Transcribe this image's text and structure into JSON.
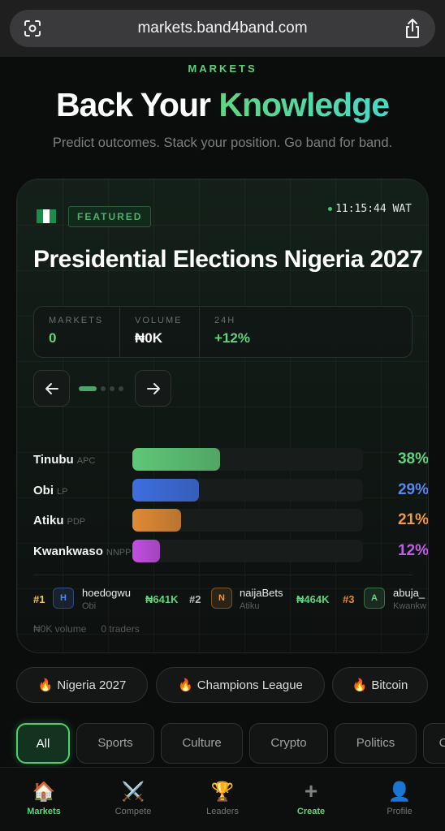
{
  "browser": {
    "url": "markets.band4band.com"
  },
  "hero": {
    "eyebrow": "MARKETS",
    "title_white": "Back Your ",
    "title_green": "Knowledge",
    "subtitle": "Predict outcomes. Stack your position. Go band for band."
  },
  "featured": {
    "badge": "FEATURED",
    "clock": "11:15:44 WAT",
    "title": "Presidential Elections Nigeria 2027",
    "stats": [
      {
        "label": "MARKETS",
        "value": "0",
        "color": "#5fd47c"
      },
      {
        "label": "VOLUME",
        "value": "₦0K",
        "color": "#ffffff"
      },
      {
        "label": "24H",
        "value": "+12%",
        "color": "#5fd47c"
      }
    ],
    "candidates": [
      {
        "name": "Tinubu",
        "party": "APC",
        "percent": "38%",
        "share": 0.38,
        "color": "#5fc777",
        "text_color": "#5fd47c"
      },
      {
        "name": "Obi",
        "party": "LP",
        "percent": "29%",
        "share": 0.29,
        "color": "#3e6ee0",
        "text_color": "#5a86f2"
      },
      {
        "name": "Atiku",
        "party": "PDP",
        "percent": "21%",
        "share": 0.21,
        "color": "#e08a35",
        "text_color": "#f0994a"
      },
      {
        "name": "Kwankwaso",
        "party": "NNPP",
        "percent": "12%",
        "share": 0.12,
        "color": "#c34fe3",
        "text_color": "#c25de6"
      }
    ],
    "leaders": [
      {
        "rank": "#1",
        "rank_color": "#f2c54b",
        "initial": "H",
        "initial_color": "#5a86f2",
        "user": "hoedogwu",
        "pick": "Obi",
        "amount": "₦641K"
      },
      {
        "rank": "#2",
        "rank_color": "#b9bebc",
        "initial": "N",
        "initial_color": "#f0994a",
        "user": "naijaBets",
        "pick": "Atiku",
        "amount": "₦464K"
      },
      {
        "rank": "#3",
        "rank_color": "#e08a35",
        "initial": "A",
        "initial_color": "#5fd47c",
        "user": "abuja_",
        "pick": "Kwankw",
        "amount": ""
      }
    ],
    "footer_volume": "₦0K volume",
    "footer_traders": "0 traders"
  },
  "chips": [
    {
      "icon": "🔥",
      "label": "Nigeria 2027"
    },
    {
      "icon": "🔥",
      "label": "Champions League"
    },
    {
      "icon": "🔥",
      "label": "Bitcoin"
    }
  ],
  "tabs": [
    "All",
    "Sports",
    "Culture",
    "Crypto",
    "Politics",
    "C"
  ],
  "nav": [
    {
      "icon": "🏠",
      "label": "Markets"
    },
    {
      "icon": "⚔️",
      "label": "Compete"
    },
    {
      "icon": "🏆",
      "label": "Leaders"
    },
    {
      "icon": "+",
      "label": "Create"
    },
    {
      "icon": "👤",
      "label": "Profile"
    }
  ]
}
